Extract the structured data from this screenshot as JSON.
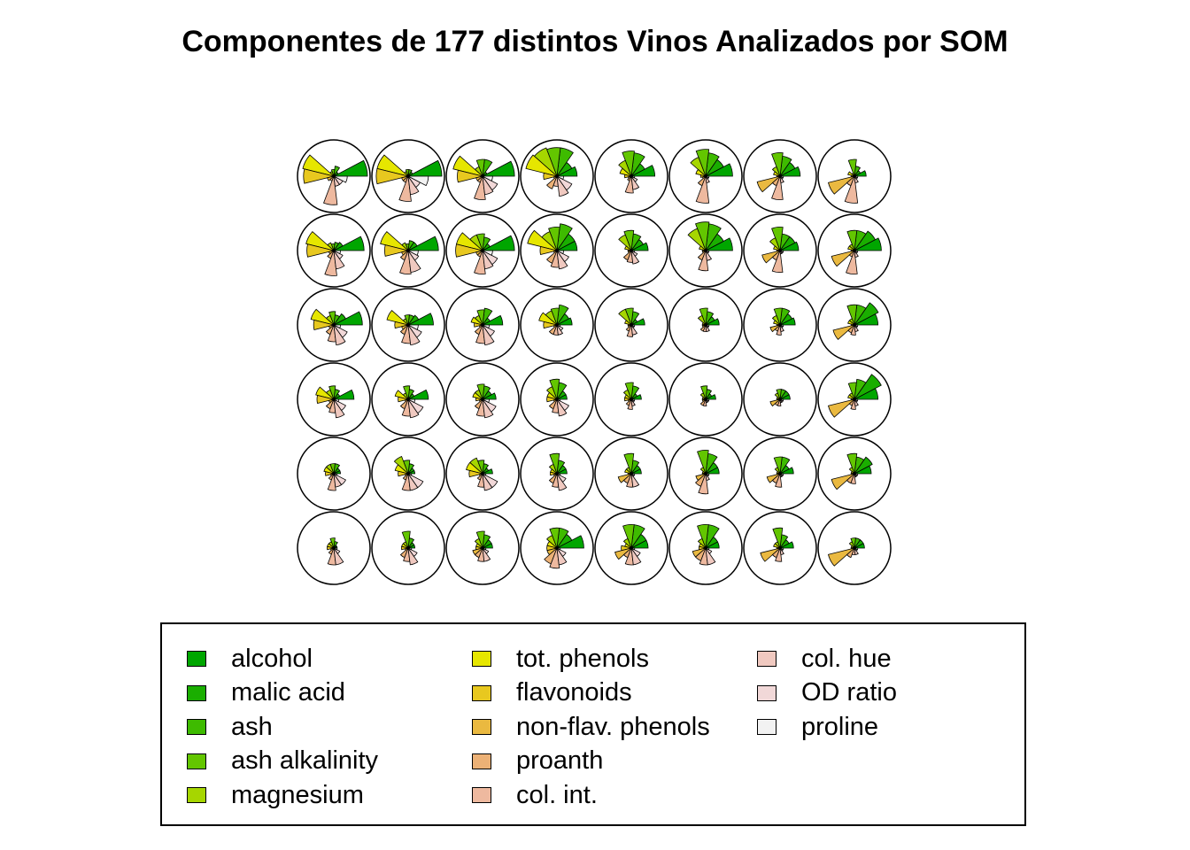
{
  "chart_data": {
    "type": "som-codes",
    "title": "Componentes de 177 distintos Vinos Analizados por SOM",
    "grid": {
      "cols": 8,
      "rows": 6
    },
    "variables": [
      {
        "name": "alcohol",
        "color": "#00A600"
      },
      {
        "name": "malic acid",
        "color": "#1AAE00"
      },
      {
        "name": "ash",
        "color": "#3EBB00"
      },
      {
        "name": "ash alkalinity",
        "color": "#63C600"
      },
      {
        "name": "magnesium",
        "color": "#A6D600"
      },
      {
        "name": "tot. phenols",
        "color": "#E6E600"
      },
      {
        "name": "flavonoids",
        "color": "#E8C81F"
      },
      {
        "name": "non-flav. phenols",
        "color": "#EAB940"
      },
      {
        "name": "proanth",
        "color": "#ECB176"
      },
      {
        "name": "col. int.",
        "color": "#EEB99F"
      },
      {
        "name": "col. hue",
        "color": "#F0C9C0"
      },
      {
        "name": "OD ratio",
        "color": "#F1D8D8"
      },
      {
        "name": "proline",
        "color": "#F2F2F2"
      }
    ],
    "units": [
      [
        [
          1.0,
          0.15,
          0.3,
          0.2,
          0.15,
          0.95,
          0.9,
          0.2,
          0.15,
          0.85,
          0.3,
          0.3,
          0.4
        ],
        [
          1.0,
          0.15,
          0.2,
          0.2,
          0.15,
          0.95,
          0.95,
          0.2,
          0.2,
          0.75,
          0.55,
          0.4,
          0.6
        ],
        [
          0.95,
          0.15,
          0.5,
          0.5,
          0.3,
          0.9,
          0.75,
          0.2,
          0.2,
          0.7,
          0.55,
          0.5,
          0.3
        ],
        [
          0.6,
          0.5,
          0.85,
          0.85,
          0.9,
          0.95,
          0.4,
          0.1,
          0.4,
          0.3,
          0.6,
          0.5,
          0.2
        ],
        [
          0.7,
          0.45,
          0.7,
          0.75,
          0.5,
          0.35,
          0.2,
          0.1,
          0.15,
          0.5,
          0.4,
          0.2,
          0.1
        ],
        [
          0.8,
          0.6,
          0.7,
          0.8,
          0.6,
          0.3,
          0.15,
          0.1,
          0.3,
          0.8,
          0.2,
          0.1,
          0.1
        ],
        [
          0.6,
          0.5,
          0.6,
          0.7,
          0.3,
          0.2,
          0.1,
          0.7,
          0.3,
          0.7,
          0.2,
          0.1,
          0.1
        ],
        [
          0.35,
          0.2,
          0.3,
          0.5,
          0.1,
          0.2,
          0.1,
          0.8,
          0.3,
          0.8,
          0.2,
          0.1,
          0.1
        ]
      ],
      [
        [
          0.9,
          0.3,
          0.25,
          0.2,
          0.25,
          0.85,
          0.8,
          0.15,
          0.25,
          0.75,
          0.55,
          0.3,
          0.2
        ],
        [
          0.9,
          0.3,
          0.3,
          0.2,
          0.25,
          0.85,
          0.7,
          0.2,
          0.3,
          0.7,
          0.65,
          0.35,
          0.3
        ],
        [
          0.95,
          0.25,
          0.4,
          0.5,
          0.5,
          0.8,
          0.8,
          0.2,
          0.2,
          0.7,
          0.55,
          0.5,
          0.3
        ],
        [
          0.6,
          0.6,
          0.8,
          0.7,
          0.6,
          0.9,
          0.5,
          0.1,
          0.4,
          0.5,
          0.55,
          0.4,
          0.2
        ],
        [
          0.5,
          0.4,
          0.5,
          0.6,
          0.5,
          0.2,
          0.1,
          0.1,
          0.3,
          0.35,
          0.4,
          0.2,
          0.1
        ],
        [
          0.8,
          0.6,
          0.8,
          0.85,
          0.7,
          0.2,
          0.1,
          0.1,
          0.3,
          0.6,
          0.3,
          0.1,
          0.1
        ],
        [
          0.55,
          0.5,
          0.5,
          0.7,
          0.4,
          0.2,
          0.1,
          0.55,
          0.3,
          0.65,
          0.1,
          0.1,
          0.1
        ],
        [
          0.8,
          0.7,
          0.6,
          0.6,
          0.2,
          0.2,
          0.1,
          0.7,
          0.2,
          0.7,
          0.2,
          0.1,
          0.1
        ]
      ],
      [
        [
          0.85,
          0.4,
          0.3,
          0.4,
          0.3,
          0.7,
          0.6,
          0.15,
          0.3,
          0.5,
          0.6,
          0.45,
          0.2
        ],
        [
          0.75,
          0.35,
          0.3,
          0.3,
          0.2,
          0.65,
          0.4,
          0.2,
          0.3,
          0.55,
          0.6,
          0.45,
          0.3
        ],
        [
          0.6,
          0.25,
          0.5,
          0.45,
          0.3,
          0.35,
          0.25,
          0.1,
          0.3,
          0.55,
          0.6,
          0.4,
          0.2
        ],
        [
          0.45,
          0.4,
          0.6,
          0.5,
          0.45,
          0.55,
          0.4,
          0.1,
          0.3,
          0.3,
          0.3,
          0.2,
          0.1
        ],
        [
          0.4,
          0.2,
          0.4,
          0.5,
          0.5,
          0.2,
          0.1,
          0.1,
          0.2,
          0.35,
          0.3,
          0.1,
          0.1
        ],
        [
          0.4,
          0.3,
          0.4,
          0.5,
          0.3,
          0.1,
          0.1,
          0.1,
          0.2,
          0.2,
          0.2,
          0.1,
          0.1
        ],
        [
          0.45,
          0.4,
          0.5,
          0.5,
          0.3,
          0.2,
          0.1,
          0.3,
          0.2,
          0.3,
          0.2,
          0.1,
          0.1
        ],
        [
          0.7,
          0.8,
          0.6,
          0.6,
          0.2,
          0.2,
          0.1,
          0.65,
          0.25,
          0.3,
          0.2,
          0.1,
          0.1
        ]
      ],
      [
        [
          0.6,
          0.2,
          0.3,
          0.4,
          0.3,
          0.55,
          0.5,
          0.15,
          0.3,
          0.4,
          0.55,
          0.4,
          0.15
        ],
        [
          0.6,
          0.2,
          0.3,
          0.4,
          0.2,
          0.4,
          0.3,
          0.1,
          0.3,
          0.5,
          0.55,
          0.5,
          0.2
        ],
        [
          0.4,
          0.3,
          0.4,
          0.45,
          0.3,
          0.3,
          0.2,
          0.1,
          0.3,
          0.5,
          0.55,
          0.45,
          0.2
        ],
        [
          0.3,
          0.3,
          0.5,
          0.6,
          0.4,
          0.3,
          0.3,
          0.1,
          0.3,
          0.4,
          0.5,
          0.4,
          0.1
        ],
        [
          0.3,
          0.2,
          0.4,
          0.5,
          0.3,
          0.2,
          0.2,
          0.1,
          0.2,
          0.3,
          0.2,
          0.1,
          0.1
        ],
        [
          0.3,
          0.2,
          0.3,
          0.4,
          0.2,
          0.1,
          0.1,
          0.1,
          0.2,
          0.2,
          0.1,
          0.1,
          0.1
        ],
        [
          0.3,
          0.3,
          0.3,
          0.3,
          0.2,
          0.1,
          0.1,
          0.3,
          0.2,
          0.2,
          0.1,
          0.1,
          0.1
        ],
        [
          0.7,
          0.9,
          0.6,
          0.5,
          0.2,
          0.2,
          0.1,
          0.8,
          0.2,
          0.3,
          0.2,
          0.1,
          0.1
        ]
      ],
      [
        [
          0.2,
          0.2,
          0.3,
          0.3,
          0.3,
          0.3,
          0.25,
          0.1,
          0.2,
          0.5,
          0.4,
          0.4,
          0.1
        ],
        [
          0.2,
          0.2,
          0.3,
          0.4,
          0.55,
          0.4,
          0.3,
          0.1,
          0.2,
          0.5,
          0.5,
          0.5,
          0.1
        ],
        [
          0.3,
          0.2,
          0.3,
          0.4,
          0.5,
          0.5,
          0.4,
          0.1,
          0.2,
          0.4,
          0.5,
          0.5,
          0.1
        ],
        [
          0.3,
          0.3,
          0.4,
          0.6,
          0.3,
          0.2,
          0.2,
          0.1,
          0.3,
          0.4,
          0.5,
          0.3,
          0.1
        ],
        [
          0.3,
          0.3,
          0.4,
          0.6,
          0.2,
          0.2,
          0.1,
          0.4,
          0.3,
          0.4,
          0.4,
          0.1,
          0.1
        ],
        [
          0.4,
          0.4,
          0.6,
          0.7,
          0.2,
          0.1,
          0.1,
          0.3,
          0.4,
          0.6,
          0.2,
          0.1,
          0.1
        ],
        [
          0.4,
          0.3,
          0.5,
          0.5,
          0.2,
          0.1,
          0.1,
          0.4,
          0.3,
          0.4,
          0.1,
          0.1,
          0.1
        ],
        [
          0.5,
          0.6,
          0.5,
          0.6,
          0.2,
          0.1,
          0.1,
          0.7,
          0.3,
          0.3,
          0.1,
          0.1,
          0.1
        ]
      ],
      [
        [
          0.1,
          0.1,
          0.2,
          0.3,
          0.2,
          0.2,
          0.2,
          0.1,
          0.2,
          0.5,
          0.5,
          0.2,
          0.1
        ],
        [
          0.2,
          0.2,
          0.3,
          0.5,
          0.2,
          0.2,
          0.2,
          0.1,
          0.3,
          0.4,
          0.5,
          0.3,
          0.1
        ],
        [
          0.3,
          0.3,
          0.4,
          0.5,
          0.3,
          0.2,
          0.2,
          0.3,
          0.3,
          0.4,
          0.4,
          0.2,
          0.1
        ],
        [
          0.8,
          0.5,
          0.6,
          0.6,
          0.4,
          0.3,
          0.3,
          0.3,
          0.5,
          0.6,
          0.5,
          0.3,
          0.1
        ],
        [
          0.5,
          0.5,
          0.7,
          0.7,
          0.3,
          0.2,
          0.3,
          0.5,
          0.3,
          0.5,
          0.5,
          0.3,
          0.1
        ],
        [
          0.4,
          0.4,
          0.7,
          0.7,
          0.3,
          0.2,
          0.2,
          0.4,
          0.4,
          0.5,
          0.5,
          0.2,
          0.1
        ],
        [
          0.4,
          0.3,
          0.4,
          0.6,
          0.2,
          0.2,
          0.1,
          0.6,
          0.3,
          0.4,
          0.2,
          0.1,
          0.1
        ],
        [
          0.3,
          0.3,
          0.3,
          0.3,
          0.2,
          0.1,
          0.1,
          0.8,
          0.3,
          0.2,
          0.2,
          0.1,
          0.1
        ]
      ]
    ]
  }
}
